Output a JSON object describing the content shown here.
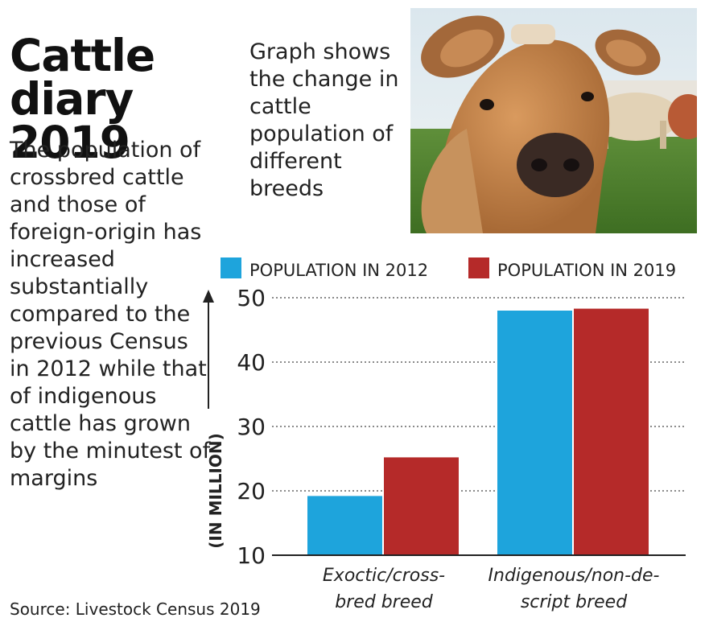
{
  "header": {
    "title_line1": "Cattle",
    "title_line2": "diary 2019",
    "subtitle": "Graph shows the change in cattle population of different breeds"
  },
  "body": {
    "text": "The population of crossbred cattle and those of foreign-origin has increased substantially compared to the previous Census in 2012 while that of indigenous cattle has grown by the minutest of margins"
  },
  "source": "Source: Livestock Census 2019",
  "photo": {
    "subject": "cow-photo"
  },
  "chart_data": {
    "type": "bar",
    "title": "",
    "xlabel": "",
    "ylabel": "(IN MILLION)",
    "categories": [
      "Exoctic/cross-bred breed",
      "Indigenous/non-de-script breed"
    ],
    "category_lines": [
      [
        "Exoctic/cross-",
        "bred breed"
      ],
      [
        "Indigenous/non-de-",
        "script breed"
      ]
    ],
    "series": [
      {
        "name": "POPULATION IN 2012",
        "color": "#1ea4dc",
        "values": [
          19.2,
          48.0
        ]
      },
      {
        "name": "POPULATION IN 2019",
        "color": "#b52a29",
        "values": [
          25.2,
          48.3
        ]
      }
    ],
    "ylim": [
      10,
      50
    ],
    "yticks": [
      10,
      20,
      30,
      40,
      50
    ],
    "grid": true,
    "legend_position": "top"
  }
}
